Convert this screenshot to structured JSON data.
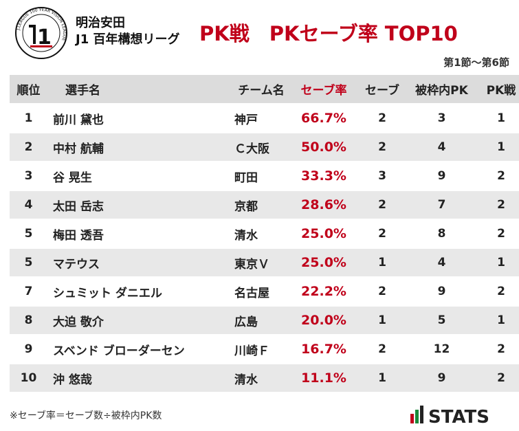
{
  "header": {
    "logo_alt": "J.LEAGUE 100 YEAR VISION LEAGUE",
    "league_line1": "明治安田",
    "league_line2": "J1 百年構想リーグ",
    "title": "PK戦　PKセーブ率 TOP10",
    "period": "第1節〜第6節"
  },
  "columns": {
    "rank": "順位",
    "player": "選手名",
    "team": "チーム名",
    "save_rate": "セーブ率",
    "saves": "セーブ",
    "faced": "被枠内PK",
    "shootouts": "PK戦"
  },
  "chart_data": {
    "type": "table",
    "title": "PK戦　PKセーブ率 TOP10",
    "rows": [
      {
        "rank": "1",
        "player": "前川 黛也",
        "team": "神戸",
        "save_rate": "66.7%",
        "saves": "2",
        "faced": "3",
        "shootouts": "1"
      },
      {
        "rank": "2",
        "player": "中村 航輔",
        "team": "Ｃ大阪",
        "save_rate": "50.0%",
        "saves": "2",
        "faced": "4",
        "shootouts": "1"
      },
      {
        "rank": "3",
        "player": "谷 晃生",
        "team": "町田",
        "save_rate": "33.3%",
        "saves": "3",
        "faced": "9",
        "shootouts": "2"
      },
      {
        "rank": "4",
        "player": "太田 岳志",
        "team": "京都",
        "save_rate": "28.6%",
        "saves": "2",
        "faced": "7",
        "shootouts": "2"
      },
      {
        "rank": "5",
        "player": "梅田 透吾",
        "team": "清水",
        "save_rate": "25.0%",
        "saves": "2",
        "faced": "8",
        "shootouts": "2"
      },
      {
        "rank": "5",
        "player": "マテウス",
        "team": "東京Ｖ",
        "save_rate": "25.0%",
        "saves": "1",
        "faced": "4",
        "shootouts": "1"
      },
      {
        "rank": "7",
        "player": "シュミット ダニエル",
        "team": "名古屋",
        "save_rate": "22.2%",
        "saves": "2",
        "faced": "9",
        "shootouts": "2"
      },
      {
        "rank": "8",
        "player": "大迫 敬介",
        "team": "広島",
        "save_rate": "20.0%",
        "saves": "1",
        "faced": "5",
        "shootouts": "1"
      },
      {
        "rank": "9",
        "player": "スベンド ブローダーセン",
        "team": "川崎Ｆ",
        "save_rate": "16.7%",
        "saves": "2",
        "faced": "12",
        "shootouts": "2"
      },
      {
        "rank": "10",
        "player": "沖 悠哉",
        "team": "清水",
        "save_rate": "11.1%",
        "saves": "1",
        "faced": "9",
        "shootouts": "2"
      }
    ]
  },
  "footer": {
    "note": "※セーブ率＝セーブ数÷被枠内PK数",
    "brand": "STATS"
  },
  "colors": {
    "accent": "#c0001a",
    "header_bg": "#dcdcdc",
    "stripe_bg": "#e8e8e8"
  }
}
